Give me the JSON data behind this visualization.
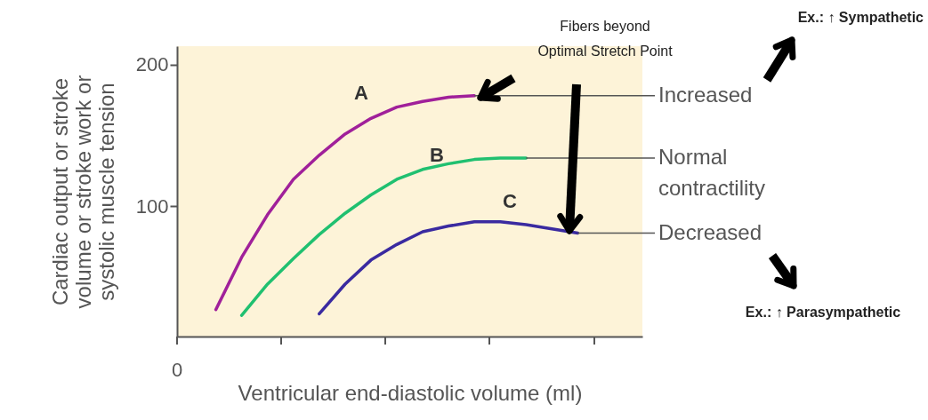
{
  "chart_data": {
    "type": "line",
    "xlabel": "Ventricular end-diastolic volume (ml)",
    "ylabel": "Cardiac output or stroke\nvolume or stroke work or\nsystolic muscle tension",
    "categories": [
      null,
      null,
      null,
      null,
      null,
      null,
      null,
      null,
      null,
      null,
      null,
      null,
      null,
      null,
      null,
      null,
      null,
      null
    ],
    "ylim": [
      8,
      213
    ],
    "yticks": [
      100,
      200
    ],
    "grid": false,
    "marker": "none",
    "line_style": "solid",
    "series": [
      {
        "color": "#a0209a",
        "values": [
          null,
          27,
          64,
          94,
          119,
          136,
          151,
          162,
          170,
          174,
          177,
          178,
          null,
          null,
          null,
          null,
          null,
          null
        ]
      },
      {
        "color": "#20c070",
        "values": [
          null,
          null,
          23,
          45,
          63,
          80,
          95,
          108,
          119,
          126,
          130,
          133,
          134,
          134,
          null,
          null,
          null,
          null
        ]
      },
      {
        "color": "#3a2aa0",
        "values": [
          null,
          null,
          null,
          null,
          null,
          24,
          45,
          62,
          73,
          82,
          86,
          89,
          89,
          87,
          84,
          81,
          null,
          null
        ]
      }
    ],
    "annotations": [
      "A",
      "B",
      "C",
      "Increased",
      "Normal\ncontractility",
      "Decreased",
      "Fibers beyond\nOptimal Stretch Point",
      "Ex.: ↑ Sympathetic",
      "Ex.: ↑ Parasympathetic",
      "0"
    ]
  }
}
